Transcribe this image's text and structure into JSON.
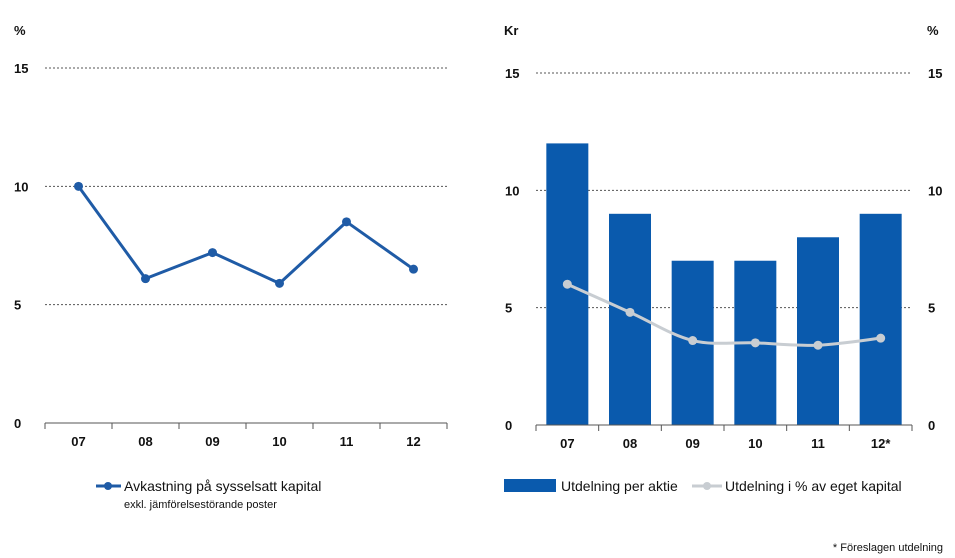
{
  "chart_data": [
    {
      "type": "line",
      "y_unit": "%",
      "categories": [
        "07",
        "08",
        "09",
        "10",
        "11",
        "12"
      ],
      "ylim": [
        0,
        15
      ],
      "yticks": [
        "0",
        "5",
        "10",
        "15"
      ],
      "grid": "dotted horizontal",
      "series": [
        {
          "name": "Avkastning på sysselsatt kapital",
          "values": [
            10.0,
            6.1,
            7.2,
            5.9,
            8.5,
            6.5
          ],
          "color": "#1f5ba6"
        }
      ],
      "legend": {
        "label": "Avkastning på sysselsatt kapital",
        "sublabel": "exkl. jämförelsestörande poster",
        "placement": "bottom"
      }
    },
    {
      "type": "bar",
      "y_unit_left": "Kr",
      "y_unit_right": "%",
      "categories": [
        "07",
        "08",
        "09",
        "10",
        "11",
        "12*"
      ],
      "ylim": [
        0,
        15
      ],
      "yticks": [
        "0",
        "5",
        "10",
        "15"
      ],
      "grid": "dotted horizontal",
      "series": [
        {
          "name": "Utdelning per aktie",
          "kind": "bar",
          "axis": "left",
          "values": [
            12,
            9,
            7,
            7,
            8,
            9
          ],
          "color": "#0a5aad"
        },
        {
          "name": "Utdelning i % av eget kapital",
          "kind": "line",
          "axis": "right",
          "values": [
            6.0,
            4.8,
            3.6,
            3.5,
            3.4,
            3.7
          ],
          "color": "#c8cdd2"
        }
      ],
      "legend": {
        "bar_label": "Utdelning per aktie",
        "line_label": "Utdelning i % av eget kapital",
        "placement": "bottom"
      },
      "footnote": "* Föreslagen utdelning"
    }
  ]
}
